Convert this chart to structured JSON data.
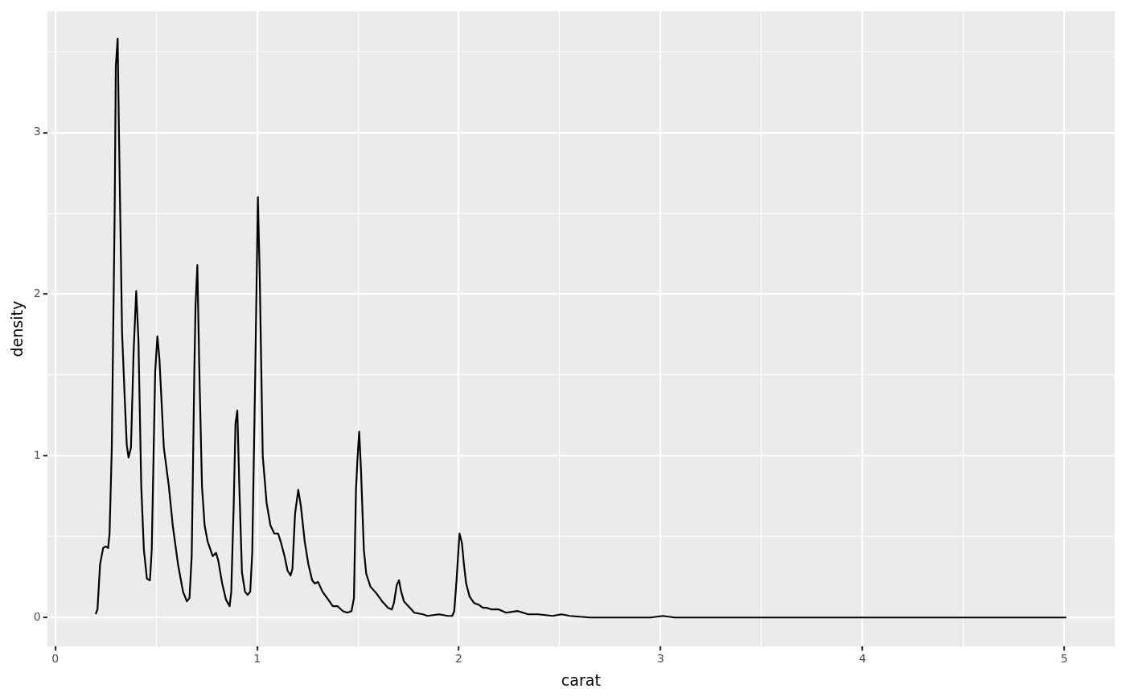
{
  "chart_data": {
    "type": "line",
    "xlabel": "carat",
    "ylabel": "density",
    "color": "#000000",
    "grid": true,
    "xlim": [
      -0.04,
      5.25
    ],
    "ylim": [
      -0.18,
      3.75
    ],
    "xticks": [
      0,
      {
        "value": 0.5,
        "label": null
      },
      1,
      {
        "value": 1.5,
        "label": null
      },
      2,
      {
        "value": 2.5,
        "label": null
      },
      3,
      {
        "value": 3.5,
        "label": null
      },
      4,
      {
        "value": 4.5,
        "label": null
      },
      5
    ],
    "yticks": [
      0,
      {
        "value": 0.5,
        "label": null
      },
      1,
      {
        "value": 1.5,
        "label": null
      },
      2,
      {
        "value": 2.5,
        "label": null
      },
      3,
      {
        "value": 3.5,
        "label": null
      }
    ],
    "x": [
      0.2,
      0.209,
      0.222,
      0.237,
      0.25,
      0.262,
      0.269,
      0.28,
      0.294,
      0.3,
      0.309,
      0.316,
      0.331,
      0.345,
      0.354,
      0.363,
      0.375,
      0.388,
      0.401,
      0.412,
      0.426,
      0.439,
      0.454,
      0.469,
      0.478,
      0.495,
      0.506,
      0.516,
      0.538,
      0.563,
      0.582,
      0.608,
      0.633,
      0.652,
      0.665,
      0.676,
      0.689,
      0.695,
      0.704,
      0.714,
      0.727,
      0.74,
      0.755,
      0.78,
      0.797,
      0.808,
      0.827,
      0.846,
      0.864,
      0.872,
      0.884,
      0.893,
      0.902,
      0.912,
      0.925,
      0.94,
      0.953,
      0.966,
      0.976,
      0.991,
      1.004,
      1.013,
      1.028,
      1.047,
      1.066,
      1.085,
      1.104,
      1.117,
      1.136,
      1.151,
      1.166,
      1.175,
      1.188,
      1.204,
      1.217,
      1.236,
      1.254,
      1.273,
      1.286,
      1.302,
      1.324,
      1.353,
      1.375,
      1.399,
      1.425,
      1.447,
      1.468,
      1.48,
      1.49,
      1.497,
      1.506,
      1.515,
      1.529,
      1.541,
      1.562,
      1.591,
      1.62,
      1.649,
      1.668,
      1.678,
      1.692,
      1.703,
      1.714,
      1.728,
      1.75,
      1.779,
      1.822,
      1.844,
      1.902,
      1.945,
      1.967,
      1.977,
      1.989,
      2.003,
      2.015,
      2.025,
      2.036,
      2.053,
      2.075,
      2.097,
      2.119,
      2.138,
      2.162,
      2.198,
      2.234,
      2.292,
      2.343,
      2.393,
      2.465,
      2.508,
      2.55,
      2.65,
      2.95,
      3.01,
      3.07,
      3.5,
      4,
      4.5,
      5.01
    ],
    "values": [
      0.02,
      0.05,
      0.33,
      0.43,
      0.44,
      0.43,
      0.52,
      1.05,
      2.48,
      3.41,
      3.58,
      2.96,
      1.76,
      1.33,
      1.07,
      0.99,
      1.05,
      1.64,
      2.02,
      1.72,
      0.81,
      0.42,
      0.24,
      0.23,
      0.42,
      1.52,
      1.74,
      1.6,
      1.05,
      0.81,
      0.57,
      0.33,
      0.16,
      0.1,
      0.12,
      0.38,
      1.52,
      1.93,
      2.18,
      1.52,
      0.81,
      0.57,
      0.47,
      0.38,
      0.4,
      0.35,
      0.21,
      0.11,
      0.07,
      0.16,
      0.69,
      1.2,
      1.28,
      0.81,
      0.28,
      0.16,
      0.14,
      0.16,
      0.4,
      1.52,
      2.6,
      2.12,
      1.0,
      0.71,
      0.57,
      0.52,
      0.52,
      0.47,
      0.38,
      0.29,
      0.26,
      0.3,
      0.64,
      0.79,
      0.69,
      0.47,
      0.33,
      0.23,
      0.21,
      0.22,
      0.16,
      0.11,
      0.07,
      0.07,
      0.04,
      0.03,
      0.04,
      0.12,
      0.79,
      0.97,
      1.15,
      0.91,
      0.42,
      0.27,
      0.19,
      0.15,
      0.1,
      0.06,
      0.05,
      0.09,
      0.2,
      0.23,
      0.16,
      0.1,
      0.07,
      0.03,
      0.02,
      0.01,
      0.02,
      0.01,
      0.01,
      0.04,
      0.24,
      0.52,
      0.46,
      0.33,
      0.21,
      0.13,
      0.09,
      0.08,
      0.06,
      0.06,
      0.05,
      0.05,
      0.03,
      0.04,
      0.02,
      0.02,
      0.01,
      0.02,
      0.01,
      0,
      0,
      0.01,
      0,
      0,
      0,
      0,
      0
    ]
  }
}
